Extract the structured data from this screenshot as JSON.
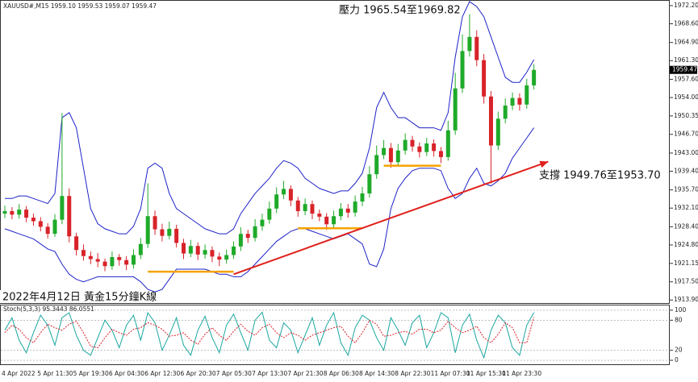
{
  "chart_data": {
    "type": "candlestick",
    "title": "XAUUSD#,M15  1959.10 1959.53 1959.07 1959.47",
    "annotations": [
      {
        "text": "壓力 1965.54至1969.82"
      },
      {
        "text": "支撐 1949.76至1953.70"
      },
      {
        "text": "2022年4月12日 黃金15分鐘K線"
      }
    ],
    "categories": [
      "4 Apr 2022",
      null,
      null,
      null,
      null,
      "5 Apr 11:30",
      null,
      null,
      null,
      null,
      "5 Apr 19:30",
      null,
      null,
      null,
      null,
      "6 Apr 04:30",
      null,
      null,
      null,
      null,
      "6 Apr 12:30",
      null,
      null,
      null,
      null,
      "6 Apr 20:30",
      null,
      null,
      null,
      null,
      "7 Apr 05:30",
      null,
      null,
      null,
      null,
      "7 Apr 13:30",
      null,
      null,
      null,
      null,
      "7 Apr 21:30",
      null,
      null,
      null,
      null,
      "8 Apr 06:30",
      null,
      null,
      null,
      null,
      "8 Apr 14:30",
      null,
      null,
      null,
      null,
      "8 Apr 22:30",
      null,
      null,
      null,
      null,
      "11 Apr 07:30",
      null,
      null,
      null,
      null,
      "11 Apr 15:30",
      null,
      null,
      null,
      null,
      "11 Apr 23:30",
      null,
      null,
      null,
      null
    ],
    "open": [
      1931.0,
      1931.5,
      1930.8,
      1931.8,
      1930.2,
      1929.5,
      1928.4,
      1927.0,
      1929.8,
      1934.5,
      1926.5,
      1923.8,
      1922.6,
      1922.0,
      1921.5,
      1920.6,
      1922.4,
      1921.8,
      1920.9,
      1922.8,
      1925.0,
      1930.5,
      1927.9,
      1926.6,
      1928.0,
      1925.2,
      1923.1,
      1924.6,
      1922.9,
      1923.8,
      1922.5,
      1921.9,
      1922.8,
      1924.5,
      1927.0,
      1926.2,
      1928.5,
      1929.8,
      1932.0,
      1934.8,
      1935.9,
      1933.6,
      1931.5,
      1932.9,
      1931.0,
      1930.4,
      1928.9,
      1930.5,
      1932.0,
      1931.2,
      1933.4,
      1935.0,
      1938.8,
      1942.6,
      1944.0,
      1941.2,
      1943.5,
      1945.6,
      1944.3,
      1943.2,
      1944.9,
      1943.4,
      1942.2,
      1947.5,
      1955.8,
      1963.2,
      1966.0,
      1961.4,
      1954.2,
      1944.5,
      1949.8,
      1952.4,
      1953.9,
      1952.6,
      1956.4
    ],
    "high": [
      1932.6,
      1932.3,
      1932.9,
      1932.5,
      1931.0,
      1930.3,
      1929.1,
      1930.9,
      1950.9,
      1936.0,
      1927.2,
      1924.9,
      1923.5,
      1923.2,
      1922.1,
      1923.5,
      1923.0,
      1922.6,
      1923.9,
      1926.2,
      1937.0,
      1931.6,
      1929.0,
      1929.4,
      1928.8,
      1926.0,
      1925.8,
      1925.3,
      1924.9,
      1924.5,
      1923.3,
      1923.9,
      1925.5,
      1928.3,
      1927.8,
      1929.9,
      1931.0,
      1933.4,
      1936.2,
      1937.5,
      1936.6,
      1934.3,
      1934.0,
      1933.6,
      1931.8,
      1931.1,
      1931.6,
      1933.1,
      1932.9,
      1934.6,
      1936.3,
      1940.4,
      1944.5,
      1945.6,
      1945.0,
      1944.8,
      1946.9,
      1946.4,
      1945.1,
      1946.0,
      1945.7,
      1944.2,
      1949.4,
      1958.9,
      1966.5,
      1970.5,
      1967.3,
      1962.6,
      1955.3,
      1951.2,
      1953.8,
      1955.0,
      1954.8,
      1957.7,
      1960.6
    ],
    "low": [
      1930.1,
      1929.9,
      1930.0,
      1929.3,
      1928.6,
      1927.5,
      1926.1,
      1926.4,
      1928.9,
      1925.3,
      1922.7,
      1921.7,
      1921.0,
      1920.4,
      1919.6,
      1919.9,
      1920.7,
      1919.8,
      1920.1,
      1922.0,
      1924.2,
      1926.8,
      1925.5,
      1925.9,
      1924.3,
      1922.0,
      1922.4,
      1921.8,
      1922.1,
      1921.4,
      1920.6,
      1921.1,
      1922.0,
      1923.6,
      1925.2,
      1925.5,
      1927.6,
      1929.0,
      1931.1,
      1933.9,
      1932.5,
      1930.4,
      1930.7,
      1929.9,
      1929.5,
      1927.8,
      1928.1,
      1929.7,
      1930.2,
      1930.4,
      1932.5,
      1934.2,
      1937.9,
      1941.8,
      1940.1,
      1940.5,
      1942.7,
      1943.3,
      1942.1,
      1942.4,
      1942.3,
      1941.0,
      1941.5,
      1946.6,
      1954.9,
      1962.1,
      1960.2,
      1952.8,
      1937.0,
      1943.6,
      1948.9,
      1951.5,
      1951.4,
      1951.8,
      1955.6
    ],
    "close": [
      1931.5,
      1930.8,
      1931.8,
      1930.2,
      1929.5,
      1928.4,
      1927.0,
      1929.8,
      1934.5,
      1926.5,
      1923.8,
      1922.6,
      1922.0,
      1921.5,
      1920.6,
      1922.4,
      1921.8,
      1920.9,
      1922.8,
      1925.0,
      1930.5,
      1927.9,
      1926.6,
      1928.0,
      1925.2,
      1923.1,
      1924.6,
      1922.9,
      1923.8,
      1922.5,
      1921.9,
      1922.8,
      1924.5,
      1927.0,
      1926.2,
      1928.5,
      1929.8,
      1932.0,
      1934.8,
      1935.9,
      1933.6,
      1931.5,
      1932.9,
      1931.0,
      1930.4,
      1928.9,
      1930.5,
      1932.0,
      1931.2,
      1933.4,
      1935.0,
      1938.8,
      1942.6,
      1944.0,
      1941.2,
      1943.5,
      1945.6,
      1944.3,
      1943.2,
      1944.9,
      1943.4,
      1942.2,
      1947.5,
      1955.8,
      1963.2,
      1966.0,
      1961.4,
      1954.2,
      1944.5,
      1949.8,
      1952.4,
      1953.9,
      1952.6,
      1956.4,
      1959.47
    ],
    "up_color": "#1faa2a",
    "down_color": "#d8232a",
    "bands": {
      "color": "#1f22c8",
      "upper": [
        1934,
        1934,
        1934.5,
        1934.5,
        1934,
        1933.5,
        1933,
        1935,
        1950,
        1951,
        1948,
        1940,
        1932,
        1929,
        1928,
        1927.5,
        1927,
        1927,
        1928.5,
        1932,
        1940,
        1941,
        1940,
        1935,
        1932,
        1931,
        1930,
        1929,
        1928,
        1927.5,
        1927,
        1927,
        1928,
        1931,
        1933,
        1935,
        1936.5,
        1938,
        1940,
        1941.5,
        1941,
        1940,
        1938,
        1937,
        1936,
        1935.5,
        1935,
        1935.5,
        1935.5,
        1937,
        1939,
        1944,
        1952,
        1955,
        1952,
        1950,
        1950,
        1949,
        1948,
        1948,
        1948,
        1947.5,
        1951,
        1962,
        1970,
        1973,
        1972,
        1970,
        1966,
        1962,
        1958,
        1957,
        1957,
        1959,
        1961.5
      ],
      "lower": [
        1928,
        1927.5,
        1927,
        1926.5,
        1926,
        1925,
        1924,
        1923.5,
        1921,
        1919,
        1918,
        1917.5,
        1918,
        1918.5,
        1918.5,
        1918.5,
        1918.5,
        1918.5,
        1918.5,
        1917.5,
        1916,
        1915.5,
        1916,
        1918,
        1920,
        1920,
        1920,
        1920,
        1920,
        1919.5,
        1919,
        1919,
        1918.5,
        1918.5,
        1919.5,
        1921,
        1922.5,
        1924,
        1925.5,
        1926.5,
        1927.5,
        1928,
        1928,
        1927.5,
        1927,
        1926.5,
        1926,
        1926.5,
        1927,
        1926,
        1925,
        1921,
        1920.5,
        1924,
        1932,
        1936,
        1938,
        1939.5,
        1940,
        1940,
        1940,
        1939.5,
        1936,
        1934,
        1935,
        1938,
        1940,
        1937,
        1936.5,
        1937.5,
        1939,
        1942,
        1944,
        1946,
        1948
      ]
    },
    "trendline": {
      "x": [
        32,
        76
      ],
      "y": [
        1919.0,
        1941.3
      ],
      "color": "#e0201b"
    },
    "levels": [
      {
        "x": [
          20,
          32
        ],
        "y": 1919.5
      },
      {
        "x": [
          41,
          50
        ],
        "y": 1928.1
      },
      {
        "x": [
          53,
          61
        ],
        "y": 1940.5
      }
    ],
    "level_color": "#f5a300",
    "last_price": 1959.47,
    "ylim": [
      1913.3,
      1973.15
    ],
    "yticks": [
      {
        "value": 1972.2,
        "label": "1972.20"
      },
      {
        "value": 1968.6,
        "label": "1968.60"
      },
      {
        "value": 1964.9,
        "label": "1964.90"
      },
      {
        "value": 1961.3,
        "label": "1961.30"
      },
      {
        "value": 1957.6,
        "label": "1957.60"
      },
      {
        "value": 1954,
        "label": "1954.00"
      },
      1950.35,
      {
        "value": 1946.7,
        "label": "1946.70"
      },
      {
        "value": 1943,
        "label": "1943.00"
      },
      {
        "value": 1939.4,
        "label": "1939.40"
      },
      {
        "value": 1935.7,
        "label": "1935.70"
      },
      {
        "value": 1932.1,
        "label": "1932.10"
      },
      {
        "value": 1928.4,
        "label": "1928.40"
      },
      {
        "value": 1924.8,
        "label": "1924.80"
      },
      1921.15,
      {
        "value": 1917.5,
        "label": "1917.50"
      },
      {
        "value": 1913.9,
        "label": "1913.90"
      }
    ],
    "stoch": {
      "type": "line",
      "title": "Stoch(5,3,3) 95.3443 86.0551",
      "ylim": [
        -8,
        109.5
      ],
      "yticks": [
        100,
        80,
        20,
        0
      ],
      "grid": true,
      "series": [
        {
          "color": "#1aa6a0",
          "values": [
            60,
            85,
            40,
            15,
            55,
            90,
            70,
            30,
            85,
            95,
            50,
            20,
            10,
            45,
            80,
            60,
            25,
            70,
            90,
            40,
            95,
            75,
            20,
            50,
            85,
            30,
            10,
            60,
            88,
            45,
            15,
            70,
            92,
            55,
            20,
            80,
            96,
            40,
            25,
            75,
            60,
            15,
            50,
            85,
            30,
            70,
            95,
            35,
            10,
            65,
            90,
            80,
            45,
            20,
            85,
            60,
            30,
            75,
            90,
            25,
            55,
            95,
            85,
            15,
            70,
            92,
            40,
            5,
            60,
            90,
            75,
            25,
            10,
            70,
            95.3443
          ]
        },
        {
          "color": "#d8232a",
          "values": [
            55,
            70,
            62,
            45,
            35,
            55,
            72,
            65,
            60,
            72,
            78,
            55,
            28,
            25,
            45,
            62,
            55,
            50,
            62,
            65,
            75,
            70,
            62,
            48,
            50,
            55,
            40,
            32,
            52,
            65,
            50,
            40,
            58,
            72,
            58,
            50,
            65,
            72,
            55,
            45,
            55,
            50,
            40,
            50,
            55,
            60,
            65,
            68,
            48,
            35,
            55,
            80,
            72,
            48,
            50,
            55,
            58,
            52,
            62,
            62,
            55,
            60,
            78,
            65,
            55,
            60,
            68,
            45,
            35,
            52,
            75,
            65,
            35,
            35,
            86.0551
          ]
        }
      ]
    }
  }
}
